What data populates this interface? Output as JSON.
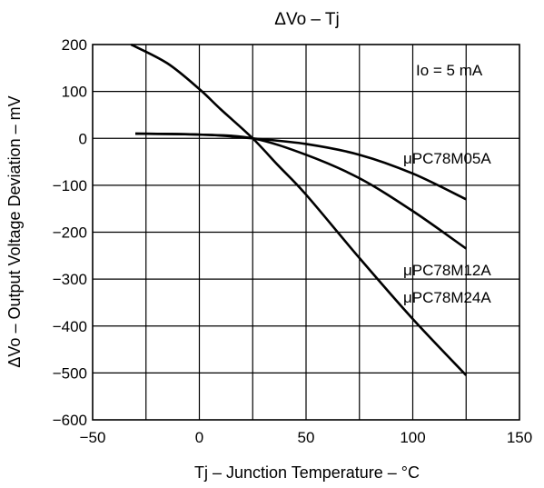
{
  "chart_data": {
    "type": "line",
    "title": "ΔVo – Tj",
    "xlabel": "Tj – Junction Temperature – °C",
    "ylabel": "ΔVo – Output Voltage Deviation – mV",
    "xlim": [
      -50,
      150
    ],
    "ylim": [
      -600,
      200
    ],
    "x_ticks": [
      -50,
      0,
      50,
      100,
      150
    ],
    "x_tick_labels": [
      "−50",
      "0",
      "50",
      "100",
      "150"
    ],
    "y_ticks": [
      200,
      100,
      0,
      -100,
      -200,
      -300,
      -400,
      -500,
      -600
    ],
    "y_tick_labels": [
      "200",
      "100",
      "0",
      "−100",
      "−200",
      "−300",
      "−400",
      "−500",
      "−600"
    ],
    "grid": true,
    "annotation": "Io = 5 mA",
    "series": [
      {
        "name": "μPC78M05A",
        "x": [
          -30,
          -10,
          0,
          10,
          25,
          50,
          75,
          100,
          125
        ],
        "y": [
          10,
          9,
          8,
          6,
          0,
          -12,
          -35,
          -75,
          -130
        ]
      },
      {
        "name": "μPC78M12A",
        "x": [
          -30,
          0,
          25,
          50,
          75,
          100,
          125
        ],
        "y": [
          10,
          8,
          0,
          -35,
          -85,
          -155,
          -235
        ]
      },
      {
        "name": "μPC78M24A",
        "x": [
          -32,
          -15,
          0,
          10,
          25,
          37,
          50,
          75,
          100,
          125
        ],
        "y": [
          200,
          160,
          105,
          62,
          0,
          -58,
          -120,
          -255,
          -385,
          -505
        ]
      }
    ]
  }
}
